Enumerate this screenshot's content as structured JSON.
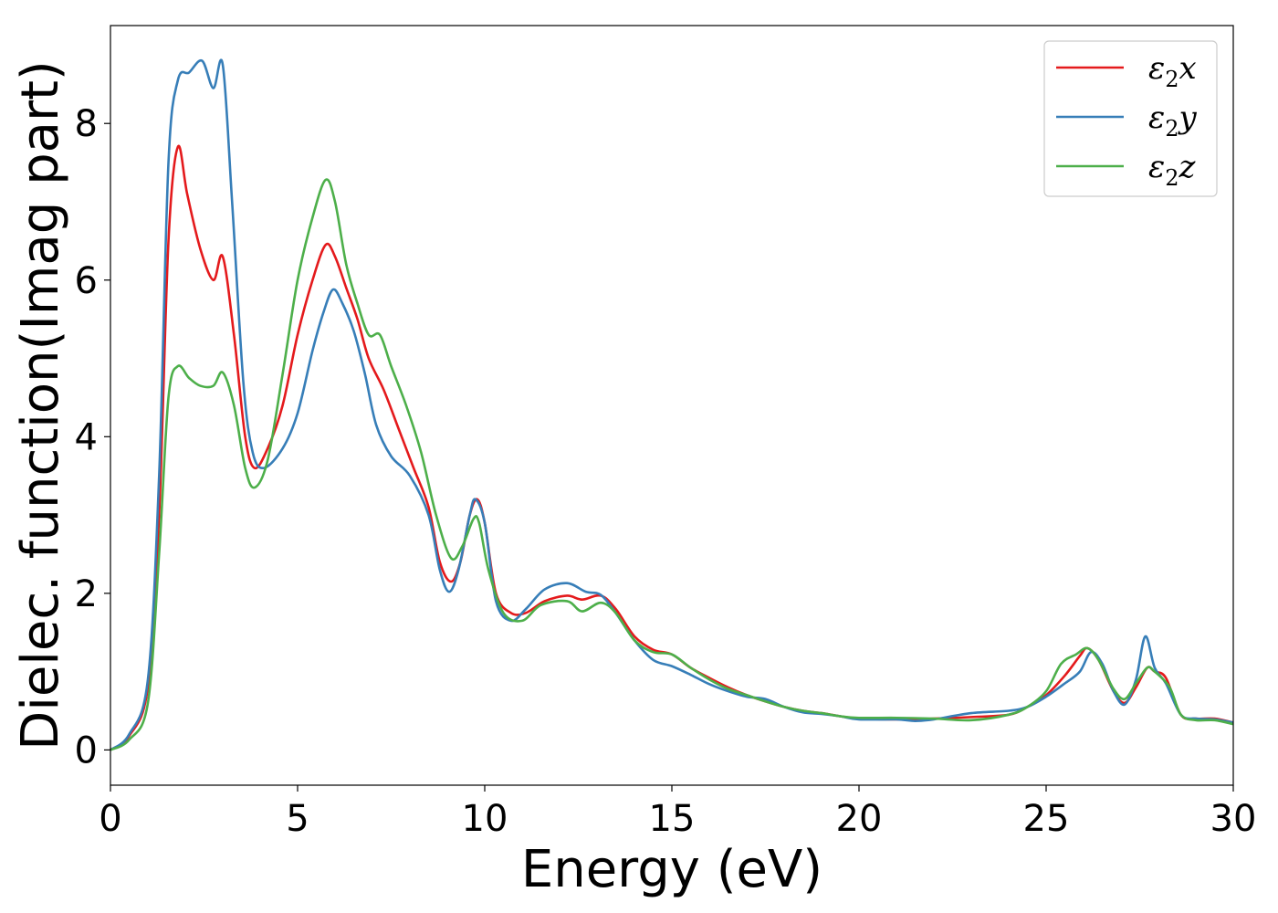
{
  "chart_data": {
    "type": "line",
    "title": "",
    "xlabel": "Energy (eV)",
    "ylabel": "Dielec. function(Imag part)",
    "xlim": [
      0,
      30
    ],
    "ylim": [
      -0.45,
      9.25
    ],
    "xticks": [
      0,
      5,
      10,
      15,
      20,
      25,
      30
    ],
    "xtick_labels": [
      "0",
      "5",
      "10",
      "15",
      "20",
      "25",
      "30"
    ],
    "yticks": [
      0,
      2,
      4,
      6,
      8
    ],
    "ytick_labels": [
      "0",
      "2",
      "4",
      "6",
      "8"
    ],
    "grid": false,
    "legend_position": "top-right",
    "series": [
      {
        "name": "ε₂x",
        "legend": {
          "main": "ε",
          "sub": "2",
          "suffix": "x"
        },
        "color": "#e41a1c",
        "points": [
          [
            0,
            0
          ],
          [
            0.5,
            0.18
          ],
          [
            1.0,
            0.8
          ],
          [
            1.3,
            3.0
          ],
          [
            1.55,
            6.5
          ],
          [
            1.8,
            7.7
          ],
          [
            2.05,
            7.1
          ],
          [
            2.4,
            6.4
          ],
          [
            2.75,
            6.0
          ],
          [
            3.0,
            6.3
          ],
          [
            3.3,
            5.3
          ],
          [
            3.6,
            4.0
          ],
          [
            3.85,
            3.6
          ],
          [
            4.2,
            3.85
          ],
          [
            4.6,
            4.4
          ],
          [
            5.0,
            5.3
          ],
          [
            5.4,
            6.0
          ],
          [
            5.75,
            6.45
          ],
          [
            6.0,
            6.3
          ],
          [
            6.3,
            5.9
          ],
          [
            6.6,
            5.5
          ],
          [
            6.9,
            5.0
          ],
          [
            7.3,
            4.6
          ],
          [
            7.7,
            4.1
          ],
          [
            8.1,
            3.6
          ],
          [
            8.5,
            3.1
          ],
          [
            8.8,
            2.4
          ],
          [
            9.1,
            2.15
          ],
          [
            9.35,
            2.4
          ],
          [
            9.6,
            3.0
          ],
          [
            9.8,
            3.2
          ],
          [
            10.0,
            2.9
          ],
          [
            10.3,
            2.0
          ],
          [
            10.7,
            1.75
          ],
          [
            11.1,
            1.75
          ],
          [
            11.6,
            1.9
          ],
          [
            12.2,
            1.97
          ],
          [
            12.6,
            1.92
          ],
          [
            13.1,
            1.97
          ],
          [
            13.5,
            1.8
          ],
          [
            14.0,
            1.45
          ],
          [
            14.5,
            1.28
          ],
          [
            15.0,
            1.22
          ],
          [
            15.5,
            1.05
          ],
          [
            16.0,
            0.92
          ],
          [
            16.5,
            0.8
          ],
          [
            17.0,
            0.7
          ],
          [
            17.5,
            0.62
          ],
          [
            18.0,
            0.55
          ],
          [
            18.5,
            0.5
          ],
          [
            19.0,
            0.47
          ],
          [
            19.5,
            0.43
          ],
          [
            20.0,
            0.4
          ],
          [
            21.0,
            0.39
          ],
          [
            22.0,
            0.4
          ],
          [
            23.0,
            0.42
          ],
          [
            24.0,
            0.45
          ],
          [
            24.5,
            0.55
          ],
          [
            25.0,
            0.7
          ],
          [
            25.5,
            0.95
          ],
          [
            25.9,
            1.2
          ],
          [
            26.1,
            1.3
          ],
          [
            26.4,
            1.15
          ],
          [
            26.8,
            0.75
          ],
          [
            27.1,
            0.6
          ],
          [
            27.4,
            0.8
          ],
          [
            27.7,
            1.05
          ],
          [
            27.9,
            1.0
          ],
          [
            28.2,
            0.92
          ],
          [
            28.6,
            0.45
          ],
          [
            29.0,
            0.4
          ],
          [
            29.5,
            0.4
          ],
          [
            30.0,
            0.35
          ]
        ]
      },
      {
        "name": "ε₂y",
        "legend": {
          "main": "ε",
          "sub": "2",
          "suffix": "y"
        },
        "color": "#377eb8",
        "points": [
          [
            0,
            0
          ],
          [
            0.5,
            0.2
          ],
          [
            1.0,
            0.9
          ],
          [
            1.3,
            3.5
          ],
          [
            1.55,
            7.5
          ],
          [
            1.8,
            8.55
          ],
          [
            2.1,
            8.65
          ],
          [
            2.45,
            8.8
          ],
          [
            2.75,
            8.45
          ],
          [
            3.0,
            8.75
          ],
          [
            3.25,
            7.0
          ],
          [
            3.55,
            4.7
          ],
          [
            3.8,
            3.8
          ],
          [
            4.1,
            3.6
          ],
          [
            4.6,
            3.85
          ],
          [
            5.0,
            4.3
          ],
          [
            5.4,
            5.1
          ],
          [
            5.7,
            5.6
          ],
          [
            5.95,
            5.88
          ],
          [
            6.2,
            5.7
          ],
          [
            6.5,
            5.35
          ],
          [
            6.8,
            4.8
          ],
          [
            7.1,
            4.15
          ],
          [
            7.5,
            3.75
          ],
          [
            8.0,
            3.5
          ],
          [
            8.5,
            3.0
          ],
          [
            8.8,
            2.3
          ],
          [
            9.05,
            2.02
          ],
          [
            9.3,
            2.3
          ],
          [
            9.6,
            3.0
          ],
          [
            9.75,
            3.2
          ],
          [
            10.0,
            2.9
          ],
          [
            10.3,
            1.9
          ],
          [
            10.7,
            1.65
          ],
          [
            11.1,
            1.8
          ],
          [
            11.6,
            2.05
          ],
          [
            12.2,
            2.13
          ],
          [
            12.7,
            2.02
          ],
          [
            13.1,
            1.98
          ],
          [
            13.5,
            1.75
          ],
          [
            14.0,
            1.4
          ],
          [
            14.5,
            1.15
          ],
          [
            15.0,
            1.07
          ],
          [
            15.5,
            0.96
          ],
          [
            16.0,
            0.84
          ],
          [
            16.5,
            0.75
          ],
          [
            17.0,
            0.68
          ],
          [
            17.5,
            0.65
          ],
          [
            18.0,
            0.55
          ],
          [
            18.5,
            0.48
          ],
          [
            19.0,
            0.46
          ],
          [
            19.5,
            0.43
          ],
          [
            20.0,
            0.39
          ],
          [
            21.0,
            0.39
          ],
          [
            21.5,
            0.37
          ],
          [
            22.0,
            0.39
          ],
          [
            23.0,
            0.47
          ],
          [
            24.0,
            0.5
          ],
          [
            24.5,
            0.55
          ],
          [
            25.0,
            0.68
          ],
          [
            25.5,
            0.85
          ],
          [
            25.9,
            1.0
          ],
          [
            26.2,
            1.25
          ],
          [
            26.5,
            1.1
          ],
          [
            26.8,
            0.75
          ],
          [
            27.1,
            0.58
          ],
          [
            27.4,
            0.9
          ],
          [
            27.65,
            1.45
          ],
          [
            27.9,
            1.05
          ],
          [
            28.2,
            0.85
          ],
          [
            28.6,
            0.45
          ],
          [
            29.0,
            0.4
          ],
          [
            29.5,
            0.39
          ],
          [
            30.0,
            0.35
          ]
        ]
      },
      {
        "name": "ε₂z",
        "legend": {
          "main": "ε",
          "sub": "2",
          "suffix": "z"
        },
        "color": "#4daf4a",
        "points": [
          [
            0,
            0
          ],
          [
            0.5,
            0.13
          ],
          [
            1.0,
            0.6
          ],
          [
            1.3,
            2.5
          ],
          [
            1.55,
            4.5
          ],
          [
            1.8,
            4.9
          ],
          [
            2.1,
            4.75
          ],
          [
            2.4,
            4.65
          ],
          [
            2.75,
            4.65
          ],
          [
            3.0,
            4.82
          ],
          [
            3.3,
            4.4
          ],
          [
            3.6,
            3.6
          ],
          [
            3.85,
            3.35
          ],
          [
            4.2,
            3.7
          ],
          [
            4.6,
            4.8
          ],
          [
            5.0,
            6.0
          ],
          [
            5.4,
            6.8
          ],
          [
            5.75,
            7.28
          ],
          [
            6.0,
            7.0
          ],
          [
            6.3,
            6.2
          ],
          [
            6.6,
            5.7
          ],
          [
            6.9,
            5.3
          ],
          [
            7.2,
            5.3
          ],
          [
            7.5,
            4.9
          ],
          [
            7.9,
            4.4
          ],
          [
            8.3,
            3.8
          ],
          [
            8.7,
            3.0
          ],
          [
            9.1,
            2.45
          ],
          [
            9.4,
            2.6
          ],
          [
            9.7,
            2.95
          ],
          [
            9.85,
            2.9
          ],
          [
            10.1,
            2.3
          ],
          [
            10.5,
            1.75
          ],
          [
            11.0,
            1.65
          ],
          [
            11.5,
            1.85
          ],
          [
            12.2,
            1.9
          ],
          [
            12.6,
            1.77
          ],
          [
            13.1,
            1.88
          ],
          [
            13.5,
            1.75
          ],
          [
            14.0,
            1.4
          ],
          [
            14.5,
            1.25
          ],
          [
            15.0,
            1.22
          ],
          [
            15.5,
            1.05
          ],
          [
            16.0,
            0.9
          ],
          [
            16.5,
            0.78
          ],
          [
            17.0,
            0.7
          ],
          [
            17.5,
            0.62
          ],
          [
            18.0,
            0.55
          ],
          [
            18.5,
            0.5
          ],
          [
            19.0,
            0.47
          ],
          [
            19.5,
            0.43
          ],
          [
            20.0,
            0.41
          ],
          [
            21.0,
            0.41
          ],
          [
            22.0,
            0.4
          ],
          [
            23.0,
            0.38
          ],
          [
            24.0,
            0.45
          ],
          [
            24.5,
            0.55
          ],
          [
            25.0,
            0.75
          ],
          [
            25.4,
            1.1
          ],
          [
            25.8,
            1.22
          ],
          [
            26.1,
            1.3
          ],
          [
            26.4,
            1.15
          ],
          [
            26.8,
            0.78
          ],
          [
            27.1,
            0.65
          ],
          [
            27.4,
            0.85
          ],
          [
            27.7,
            1.05
          ],
          [
            27.9,
            1.0
          ],
          [
            28.3,
            0.8
          ],
          [
            28.6,
            0.45
          ],
          [
            29.0,
            0.38
          ],
          [
            29.5,
            0.38
          ],
          [
            30.0,
            0.33
          ]
        ]
      }
    ]
  }
}
